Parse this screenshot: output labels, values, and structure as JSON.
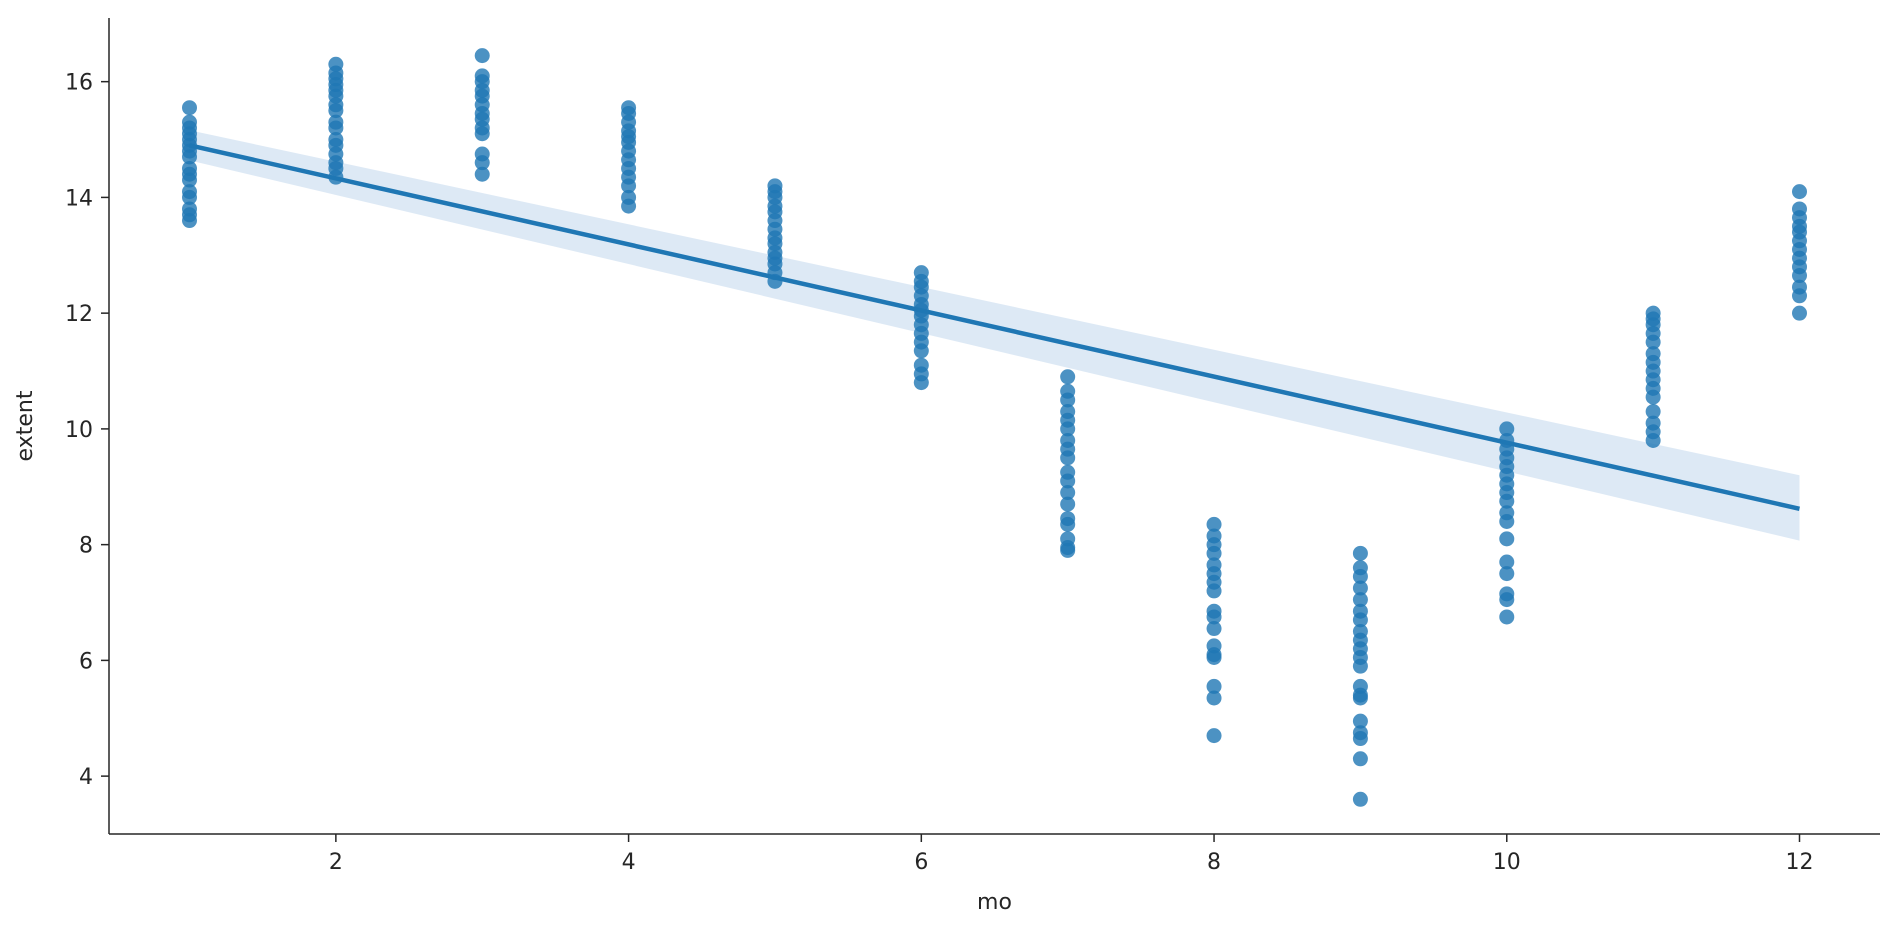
{
  "chart_data": {
    "type": "scatter",
    "title": "",
    "xlabel": "mo",
    "ylabel": "extent",
    "xlim": [
      0.45,
      12.55
    ],
    "ylim": [
      3.0,
      17.1
    ],
    "xticks": [
      2,
      4,
      6,
      8,
      10,
      12
    ],
    "yticks": [
      4,
      6,
      8,
      10,
      12,
      14,
      16
    ],
    "grid": false,
    "legend": "none",
    "point_color": "#1f77b4",
    "line_color": "#1f77b4",
    "band_color": "#c6dbef",
    "regression": {
      "x": [
        1,
        12
      ],
      "y": [
        14.9,
        8.62
      ],
      "ci_at_x1": [
        14.64,
        15.16
      ],
      "ci_at_x12": [
        8.07,
        9.2
      ]
    },
    "points": {
      "1": [
        13.6,
        13.7,
        13.8,
        14.0,
        14.1,
        14.3,
        14.4,
        14.5,
        14.7,
        14.8,
        14.9,
        15.0,
        15.1,
        15.2,
        15.3,
        15.55
      ],
      "2": [
        14.35,
        14.5,
        14.6,
        14.75,
        14.9,
        15.0,
        15.2,
        15.3,
        15.5,
        15.6,
        15.75,
        15.85,
        15.95,
        16.05,
        16.15,
        16.3
      ],
      "3": [
        14.4,
        14.6,
        14.75,
        15.1,
        15.2,
        15.35,
        15.45,
        15.6,
        15.75,
        15.85,
        16.0,
        16.1,
        16.45
      ],
      "4": [
        13.85,
        14.0,
        14.2,
        14.35,
        14.5,
        14.65,
        14.8,
        14.95,
        15.05,
        15.15,
        15.3,
        15.45,
        15.55
      ],
      "5": [
        12.55,
        12.7,
        12.85,
        12.95,
        13.05,
        13.2,
        13.3,
        13.45,
        13.6,
        13.75,
        13.85,
        14.0,
        14.1,
        14.2
      ],
      "6": [
        10.8,
        10.95,
        11.1,
        11.35,
        11.5,
        11.65,
        11.8,
        11.95,
        12.05,
        12.15,
        12.3,
        12.45,
        12.55,
        12.7
      ],
      "7": [
        7.9,
        7.95,
        8.1,
        8.35,
        8.45,
        8.7,
        8.9,
        9.1,
        9.25,
        9.5,
        9.65,
        9.8,
        10.0,
        10.15,
        10.3,
        10.5,
        10.65,
        10.9
      ],
      "8": [
        4.7,
        5.35,
        5.55,
        6.05,
        6.1,
        6.25,
        6.55,
        6.75,
        6.85,
        7.2,
        7.35,
        7.5,
        7.65,
        7.85,
        8.0,
        8.15,
        8.35
      ],
      "9": [
        3.6,
        4.3,
        4.65,
        4.75,
        4.95,
        5.35,
        5.4,
        5.55,
        5.9,
        6.05,
        6.2,
        6.35,
        6.5,
        6.7,
        6.85,
        7.05,
        7.25,
        7.45,
        7.6,
        7.85
      ],
      "10": [
        6.75,
        7.05,
        7.15,
        7.5,
        7.7,
        8.1,
        8.4,
        8.55,
        8.75,
        8.9,
        9.05,
        9.2,
        9.35,
        9.5,
        9.65,
        9.8,
        10.0
      ],
      "11": [
        9.8,
        9.95,
        10.1,
        10.3,
        10.55,
        10.7,
        10.85,
        11.0,
        11.15,
        11.3,
        11.5,
        11.65,
        11.8,
        11.9,
        12.0
      ],
      "12": [
        12.0,
        12.3,
        12.45,
        12.65,
        12.8,
        12.95,
        13.1,
        13.25,
        13.4,
        13.5,
        13.65,
        13.8,
        14.1
      ]
    }
  }
}
